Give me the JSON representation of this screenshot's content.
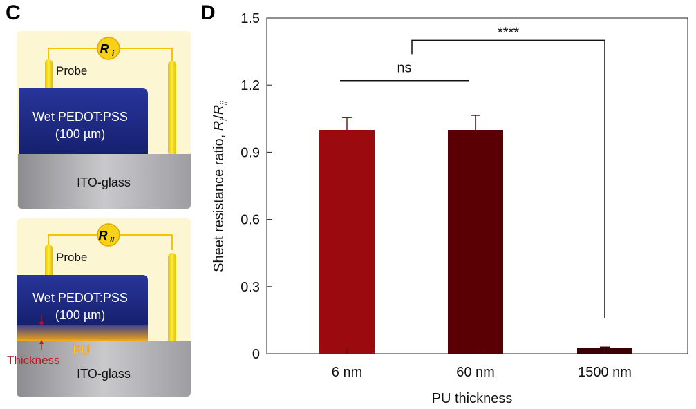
{
  "panels": {
    "c_letter": "C",
    "d_letter": "D"
  },
  "schematic": {
    "top": {
      "meter_main": "R",
      "meter_sub": "i",
      "probe_label": "Probe",
      "film_label": "Wet PEDOT:PSS",
      "film_thickness": "(100 µm)",
      "substrate_label": "ITO-glass"
    },
    "bottom": {
      "meter_main": "R",
      "meter_sub": "ii",
      "probe_label": "Probe",
      "film_label": "Wet PEDOT:PSS",
      "film_thickness": "(100 µm)",
      "layer_label": "PU",
      "thickness_label": "Thickness",
      "substrate_label": "ITO-glass"
    },
    "colors": {
      "background": "#fdf6d3",
      "film": "#1f2b86",
      "substrate": "#b8b8bc",
      "probe": "#f5d800",
      "pu_layer": "#f2a516",
      "thickness_text": "#c0141c"
    }
  },
  "chart_data": {
    "type": "bar",
    "categories": [
      "6 nm",
      "60 nm",
      "1500 nm"
    ],
    "values": [
      1.0,
      1.0,
      0.025
    ],
    "errors": [
      0.055,
      0.065,
      0.005
    ],
    "colors": [
      "#9b0a0f",
      "#5a0005",
      "#3a0003"
    ],
    "xlabel": "PU thickness",
    "ylabel_prefix": "Sheet resistance ratio, ",
    "ylabel_r1": "R",
    "ylabel_r1_sub": "i",
    "ylabel_sep": "/",
    "ylabel_r2": "R",
    "ylabel_r2_sub": "ii",
    "ylim": [
      0,
      1.5
    ],
    "yticks": [
      "0",
      "0.3",
      "0.6",
      "0.9",
      "1.2",
      "1.5"
    ],
    "ytick_values": [
      0,
      0.3,
      0.6,
      0.9,
      1.2,
      1.5
    ],
    "annotations": [
      {
        "label": "ns",
        "from": 0,
        "to": 1,
        "y": 1.22
      },
      {
        "label": "****",
        "from": 1,
        "to": 2,
        "y": 1.4,
        "drop_to": 0.16
      }
    ]
  }
}
